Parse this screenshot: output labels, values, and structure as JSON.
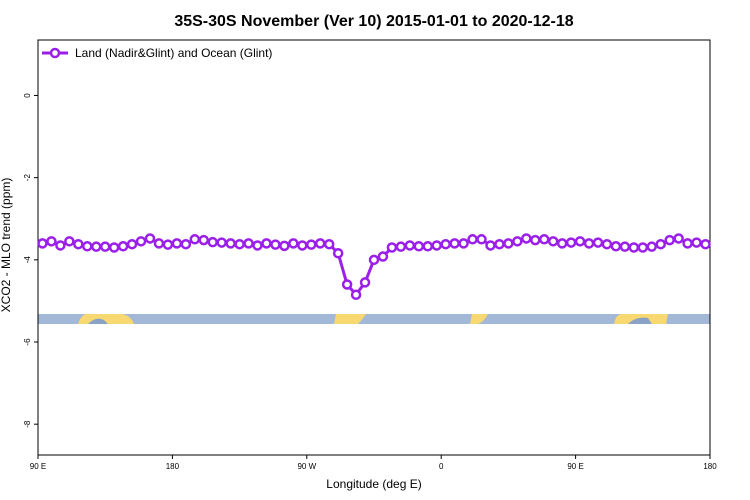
{
  "chart_data": {
    "type": "line",
    "title": "35S-30S November (Ver 10)   2015-01-01 to 2020-12-18",
    "x_label": "Longitude (deg E)",
    "y_label": "XCO2 - MLO trend (ppm)",
    "x": [
      93,
      99,
      105,
      111,
      117,
      123,
      129,
      135,
      141,
      147,
      153,
      159,
      165,
      171,
      177,
      183,
      189,
      195,
      201,
      207,
      213,
      219,
      225,
      231,
      237,
      243,
      249,
      255,
      261,
      267,
      273,
      279,
      285,
      291,
      297,
      303,
      309,
      315,
      321,
      327,
      333,
      339,
      345,
      351,
      357,
      363,
      369,
      375,
      381,
      387,
      393,
      399,
      405,
      411,
      417,
      423,
      429,
      435,
      441,
      447,
      453,
      459,
      465,
      471,
      477,
      483,
      489,
      495,
      501,
      507,
      513,
      519,
      525,
      531,
      537
    ],
    "series": [
      {
        "name": "Land (Nadir&Glint) and Ocean (Glint)",
        "color": "#9b1fe8",
        "values": [
          -3.6,
          -3.55,
          -3.65,
          -3.55,
          -3.62,
          -3.67,
          -3.68,
          -3.68,
          -3.7,
          -3.67,
          -3.62,
          -3.55,
          -3.48,
          -3.6,
          -3.63,
          -3.6,
          -3.62,
          -3.5,
          -3.52,
          -3.57,
          -3.58,
          -3.6,
          -3.62,
          -3.6,
          -3.65,
          -3.6,
          -3.63,
          -3.66,
          -3.6,
          -3.65,
          -3.63,
          -3.6,
          -3.62,
          -3.84,
          -4.6,
          -4.85,
          -4.55,
          -4.0,
          -3.92,
          -3.7,
          -3.68,
          -3.65,
          -3.67,
          -3.67,
          -3.65,
          -3.62,
          -3.6,
          -3.6,
          -3.5,
          -3.5,
          -3.65,
          -3.62,
          -3.6,
          -3.55,
          -3.48,
          -3.52,
          -3.5,
          -3.55,
          -3.6,
          -3.58,
          -3.55,
          -3.6,
          -3.58,
          -3.62,
          -3.67,
          -3.68,
          -3.7,
          -3.7,
          -3.68,
          -3.62,
          -3.52,
          -3.48,
          -3.6,
          -3.58,
          -3.62
        ]
      }
    ],
    "xlim": [
      90,
      540
    ],
    "xticks": [
      {
        "value": 90,
        "label": "90 E"
      },
      180,
      {
        "value": 270,
        "label": "90 W"
      },
      {
        "value": 360,
        "label": "0"
      },
      {
        "value": 450,
        "label": "90 E"
      },
      {
        "value": 540,
        "label": "180"
      }
    ],
    "ylim": [
      -8.75,
      1.35
    ],
    "yticks": [
      0,
      -2,
      -4,
      -6,
      -8
    ],
    "legend": "top-left"
  }
}
